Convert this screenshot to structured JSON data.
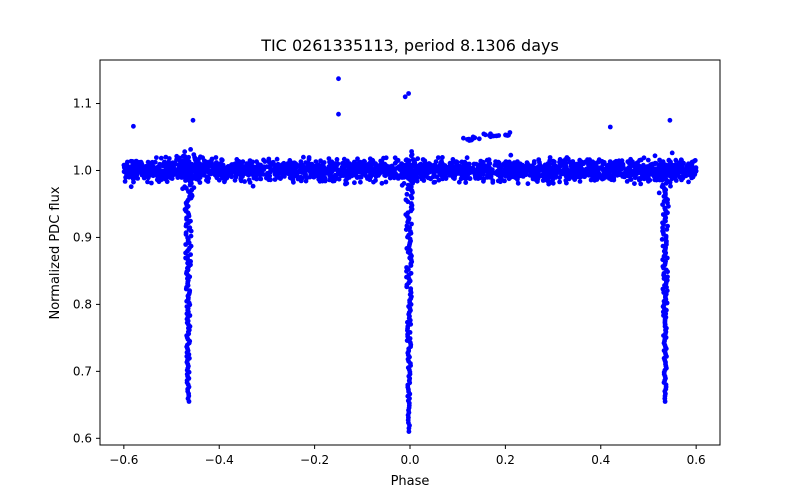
{
  "chart_data": {
    "type": "scatter",
    "title": "TIC 0261335113, period 8.1306 days",
    "xlabel": "Phase",
    "ylabel": "Normalized PDC flux",
    "xlim": [
      -0.65,
      0.65
    ],
    "ylim": [
      0.59,
      1.165
    ],
    "xticks": [
      -0.6,
      -0.4,
      -0.2,
      0.0,
      0.2,
      0.4,
      0.6
    ],
    "xtick_labels": [
      "−0.6",
      "−0.4",
      "−0.2",
      "0.0",
      "0.2",
      "0.4",
      "0.6"
    ],
    "yticks": [
      0.6,
      0.7,
      0.8,
      0.9,
      1.0,
      1.1
    ],
    "ytick_labels": [
      "0.6",
      "0.7",
      "0.8",
      "0.9",
      "1.0",
      "1.1"
    ],
    "grid": false,
    "marker_color": "#0000ff",
    "series": [
      {
        "name": "out-of-transit baseline",
        "phase_range": [
          -0.6,
          0.6
        ],
        "flux_center": 1.0,
        "flux_scatter_range": [
          0.975,
          1.03
        ]
      },
      {
        "name": "primary eclipses",
        "points": [
          {
            "phase": -0.465,
            "flux_min": 0.655
          },
          {
            "phase": -0.002,
            "flux_min": 0.61
          },
          {
            "phase": 0.535,
            "flux_min": 0.655
          }
        ]
      },
      {
        "name": "outliers",
        "points": [
          {
            "phase": -0.15,
            "flux": 1.137
          },
          {
            "phase": -0.15,
            "flux": 1.084
          },
          {
            "phase": -0.58,
            "flux": 1.066
          },
          {
            "phase": -0.455,
            "flux": 1.075
          },
          {
            "phase": 0.42,
            "flux": 1.065
          },
          {
            "phase": 0.545,
            "flux": 1.075
          },
          {
            "phase": -0.01,
            "flux": 1.11
          },
          {
            "phase": -0.003,
            "flux": 1.115
          }
        ]
      },
      {
        "name": "post-eclipse ramp",
        "x": [
          0.12,
          0.14,
          0.16,
          0.18,
          0.2
        ],
        "y": [
          1.046,
          1.049,
          1.052,
          1.054,
          1.055
        ]
      }
    ]
  }
}
